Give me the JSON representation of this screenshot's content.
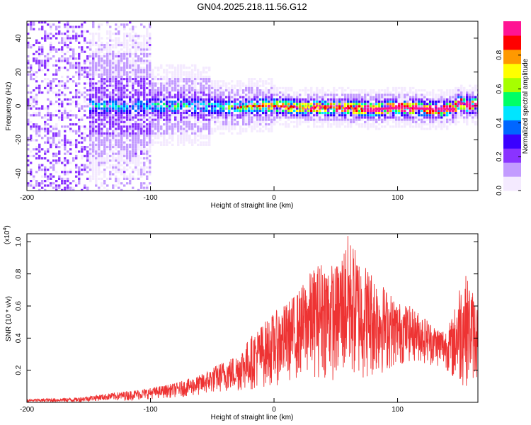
{
  "chart_data": [
    {
      "type": "heatmap",
      "title": "GN04.2025.218.11.56.G12",
      "xlabel": "Height of straight line (km)",
      "ylabel": "Frequency (Hz)",
      "xlim": [
        -200,
        165
      ],
      "ylim": [
        -50,
        50
      ],
      "xticks": [
        "-200",
        "-100",
        "0",
        "100"
      ],
      "xtick_values": [
        -200,
        -100,
        0,
        100
      ],
      "yticks": [
        "40",
        "20",
        "0",
        "-20",
        "-40"
      ],
      "ytick_values": [
        40,
        20,
        0,
        -20,
        -40
      ],
      "colorbar": {
        "label": "Normalized spectral amplitude",
        "range": [
          0,
          1
        ],
        "ticks": [
          "0.0",
          "0.2",
          "0.4",
          "0.6",
          "0.8"
        ],
        "tick_values": [
          0.0,
          0.2,
          0.4,
          0.6,
          0.8
        ],
        "colors": [
          "#f4eaff",
          "#c39bff",
          "#8a33ff",
          "#3a00ff",
          "#0066ff",
          "#00e5ff",
          "#00ff66",
          "#a6ff00",
          "#ffff00",
          "#ff9900",
          "#ff0000",
          "#ff1493"
        ]
      },
      "ridge": {
        "x": [
          -150,
          -100,
          -60,
          -30,
          -20,
          0,
          20,
          50,
          80,
          100,
          130,
          145,
          150,
          160,
          165
        ],
        "y": [
          0,
          0,
          0,
          -1,
          0,
          0,
          -1,
          -1,
          -2,
          -1,
          -2,
          -2,
          2,
          0,
          1
        ]
      }
    },
    {
      "type": "area",
      "title": "",
      "xlabel": "Height of straight line (km)",
      "ylabel": "SNR (10 * v/v)",
      "multiplier_label": "(x10",
      "multiplier_exp": "4",
      "xlim": [
        -200,
        165
      ],
      "ylim": [
        0,
        1.05
      ],
      "xticks": [
        "-200",
        "-100",
        "0",
        "100"
      ],
      "xtick_values": [
        -200,
        -100,
        0,
        100
      ],
      "yticks": [
        "0.2",
        "0.4",
        "0.6",
        "0.8",
        "1.0"
      ],
      "ytick_values": [
        0.2,
        0.4,
        0.6,
        0.8,
        1.0
      ],
      "color": "#ee3333",
      "envelope": {
        "x": [
          -200,
          -160,
          -140,
          -120,
          -100,
          -80,
          -60,
          -45,
          -30,
          -15,
          0,
          10,
          20,
          30,
          40,
          50,
          60,
          70,
          80,
          90,
          100,
          110,
          120,
          130,
          140,
          145,
          150,
          155,
          160,
          165
        ],
        "upper": [
          0.02,
          0.03,
          0.05,
          0.07,
          0.09,
          0.12,
          0.17,
          0.24,
          0.3,
          0.45,
          0.56,
          0.62,
          0.7,
          0.82,
          0.9,
          0.85,
          1.05,
          0.9,
          0.82,
          0.72,
          0.63,
          0.6,
          0.55,
          0.48,
          0.46,
          0.55,
          0.75,
          0.8,
          0.72,
          0.6
        ],
        "lower": [
          0.0,
          0.0,
          0.01,
          0.01,
          0.02,
          0.03,
          0.04,
          0.06,
          0.06,
          0.08,
          0.1,
          0.12,
          0.14,
          0.15,
          0.15,
          0.12,
          0.12,
          0.12,
          0.14,
          0.18,
          0.22,
          0.25,
          0.24,
          0.22,
          0.2,
          0.12,
          0.08,
          0.1,
          0.12,
          0.14
        ]
      }
    }
  ]
}
